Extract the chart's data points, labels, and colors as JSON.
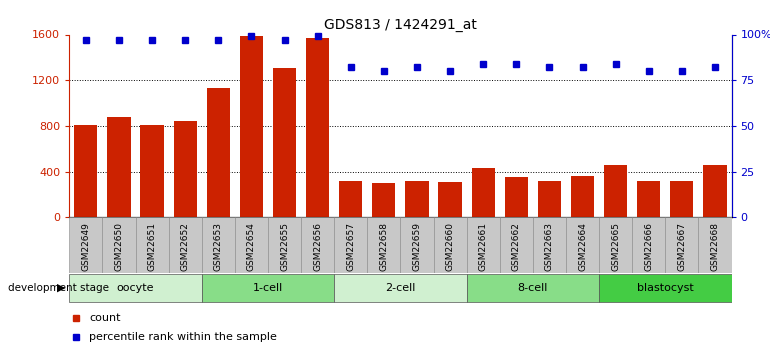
{
  "title": "GDS813 / 1424291_at",
  "samples": [
    "GSM22649",
    "GSM22650",
    "GSM22651",
    "GSM22652",
    "GSM22653",
    "GSM22654",
    "GSM22655",
    "GSM22656",
    "GSM22657",
    "GSM22658",
    "GSM22659",
    "GSM22660",
    "GSM22661",
    "GSM22662",
    "GSM22663",
    "GSM22664",
    "GSM22665",
    "GSM22666",
    "GSM22667",
    "GSM22668"
  ],
  "counts": [
    810,
    880,
    810,
    840,
    1130,
    1590,
    1310,
    1570,
    320,
    300,
    320,
    310,
    430,
    350,
    320,
    360,
    460,
    320,
    320,
    460
  ],
  "percentiles": [
    97,
    97,
    97,
    97,
    97,
    99,
    97,
    99,
    82,
    80,
    82,
    80,
    84,
    84,
    82,
    82,
    84,
    80,
    80,
    82
  ],
  "stages": [
    {
      "label": "oocyte",
      "start": 0,
      "end": 3,
      "color": "#d0f0d0"
    },
    {
      "label": "1-cell",
      "start": 4,
      "end": 7,
      "color": "#88dd88"
    },
    {
      "label": "2-cell",
      "start": 8,
      "end": 11,
      "color": "#d0f0d0"
    },
    {
      "label": "8-cell",
      "start": 12,
      "end": 15,
      "color": "#88dd88"
    },
    {
      "label": "blastocyst",
      "start": 16,
      "end": 19,
      "color": "#44cc44"
    }
  ],
  "bar_color": "#cc2200",
  "dot_color": "#0000cc",
  "ylim_left": [
    0,
    1600
  ],
  "ylim_right": [
    0,
    100
  ],
  "yticks_left": [
    0,
    400,
    800,
    1200,
    1600
  ],
  "ytick_labels_left": [
    "0",
    "400",
    "800",
    "1200",
    "1600"
  ],
  "yticks_right": [
    0,
    25,
    50,
    75,
    100
  ],
  "ytick_labels_right": [
    "0",
    "25",
    "50",
    "75",
    "100%"
  ],
  "grid_lines": [
    400,
    800,
    1200
  ],
  "dev_stage_label": "development stage",
  "legend_count": "count",
  "legend_percentile": "percentile rank within the sample",
  "bg_color": "#ffffff",
  "tick_bg_color": "#c8c8c8",
  "title_fontsize": 10,
  "tick_fontsize": 6.5
}
